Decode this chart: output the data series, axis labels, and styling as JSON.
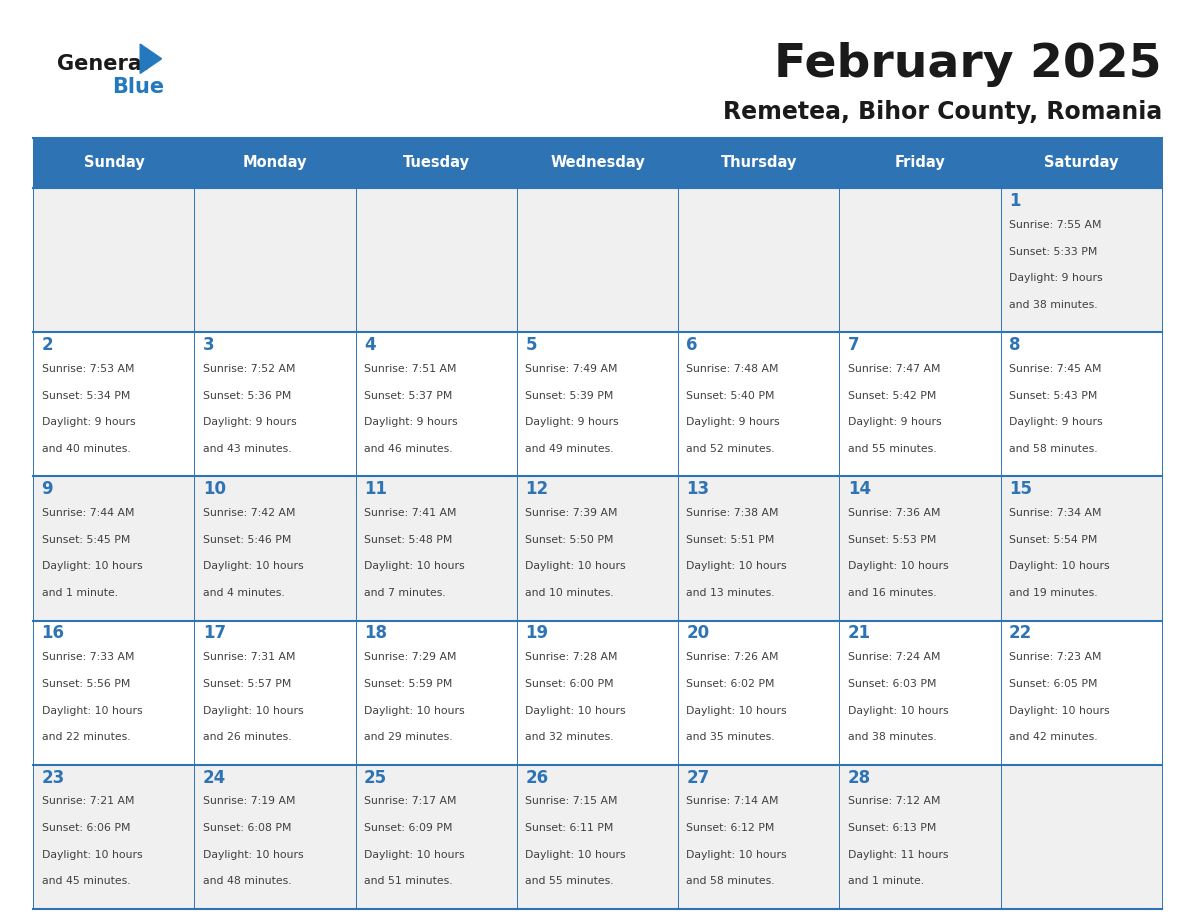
{
  "title": "February 2025",
  "subtitle": "Remetea, Bihor County, Romania",
  "days_of_week": [
    "Sunday",
    "Monday",
    "Tuesday",
    "Wednesday",
    "Thursday",
    "Friday",
    "Saturday"
  ],
  "header_bg": "#2E74B5",
  "header_text": "#FFFFFF",
  "cell_bg_light": "#FFFFFF",
  "cell_bg_gray": "#F0F0F0",
  "separator_color": "#2E74B5",
  "day_number_color": "#2E74B5",
  "cell_text_color": "#404040",
  "title_color": "#1A1A1A",
  "subtitle_color": "#1A1A1A",
  "logo_general_color": "#1A1A1A",
  "logo_blue_color": "#2479BE",
  "calendar": [
    [
      null,
      null,
      null,
      null,
      null,
      null,
      {
        "day": 1,
        "sunrise": "7:55 AM",
        "sunset": "5:33 PM",
        "daylight": "9 hours and 38 minutes."
      }
    ],
    [
      {
        "day": 2,
        "sunrise": "7:53 AM",
        "sunset": "5:34 PM",
        "daylight": "9 hours and 40 minutes."
      },
      {
        "day": 3,
        "sunrise": "7:52 AM",
        "sunset": "5:36 PM",
        "daylight": "9 hours and 43 minutes."
      },
      {
        "day": 4,
        "sunrise": "7:51 AM",
        "sunset": "5:37 PM",
        "daylight": "9 hours and 46 minutes."
      },
      {
        "day": 5,
        "sunrise": "7:49 AM",
        "sunset": "5:39 PM",
        "daylight": "9 hours and 49 minutes."
      },
      {
        "day": 6,
        "sunrise": "7:48 AM",
        "sunset": "5:40 PM",
        "daylight": "9 hours and 52 minutes."
      },
      {
        "day": 7,
        "sunrise": "7:47 AM",
        "sunset": "5:42 PM",
        "daylight": "9 hours and 55 minutes."
      },
      {
        "day": 8,
        "sunrise": "7:45 AM",
        "sunset": "5:43 PM",
        "daylight": "9 hours and 58 minutes."
      }
    ],
    [
      {
        "day": 9,
        "sunrise": "7:44 AM",
        "sunset": "5:45 PM",
        "daylight": "10 hours and 1 minute."
      },
      {
        "day": 10,
        "sunrise": "7:42 AM",
        "sunset": "5:46 PM",
        "daylight": "10 hours and 4 minutes."
      },
      {
        "day": 11,
        "sunrise": "7:41 AM",
        "sunset": "5:48 PM",
        "daylight": "10 hours and 7 minutes."
      },
      {
        "day": 12,
        "sunrise": "7:39 AM",
        "sunset": "5:50 PM",
        "daylight": "10 hours and 10 minutes."
      },
      {
        "day": 13,
        "sunrise": "7:38 AM",
        "sunset": "5:51 PM",
        "daylight": "10 hours and 13 minutes."
      },
      {
        "day": 14,
        "sunrise": "7:36 AM",
        "sunset": "5:53 PM",
        "daylight": "10 hours and 16 minutes."
      },
      {
        "day": 15,
        "sunrise": "7:34 AM",
        "sunset": "5:54 PM",
        "daylight": "10 hours and 19 minutes."
      }
    ],
    [
      {
        "day": 16,
        "sunrise": "7:33 AM",
        "sunset": "5:56 PM",
        "daylight": "10 hours and 22 minutes."
      },
      {
        "day": 17,
        "sunrise": "7:31 AM",
        "sunset": "5:57 PM",
        "daylight": "10 hours and 26 minutes."
      },
      {
        "day": 18,
        "sunrise": "7:29 AM",
        "sunset": "5:59 PM",
        "daylight": "10 hours and 29 minutes."
      },
      {
        "day": 19,
        "sunrise": "7:28 AM",
        "sunset": "6:00 PM",
        "daylight": "10 hours and 32 minutes."
      },
      {
        "day": 20,
        "sunrise": "7:26 AM",
        "sunset": "6:02 PM",
        "daylight": "10 hours and 35 minutes."
      },
      {
        "day": 21,
        "sunrise": "7:24 AM",
        "sunset": "6:03 PM",
        "daylight": "10 hours and 38 minutes."
      },
      {
        "day": 22,
        "sunrise": "7:23 AM",
        "sunset": "6:05 PM",
        "daylight": "10 hours and 42 minutes."
      }
    ],
    [
      {
        "day": 23,
        "sunrise": "7:21 AM",
        "sunset": "6:06 PM",
        "daylight": "10 hours and 45 minutes."
      },
      {
        "day": 24,
        "sunrise": "7:19 AM",
        "sunset": "6:08 PM",
        "daylight": "10 hours and 48 minutes."
      },
      {
        "day": 25,
        "sunrise": "7:17 AM",
        "sunset": "6:09 PM",
        "daylight": "10 hours and 51 minutes."
      },
      {
        "day": 26,
        "sunrise": "7:15 AM",
        "sunset": "6:11 PM",
        "daylight": "10 hours and 55 minutes."
      },
      {
        "day": 27,
        "sunrise": "7:14 AM",
        "sunset": "6:12 PM",
        "daylight": "10 hours and 58 minutes."
      },
      {
        "day": 28,
        "sunrise": "7:12 AM",
        "sunset": "6:13 PM",
        "daylight": "11 hours and 1 minute."
      },
      null
    ]
  ]
}
